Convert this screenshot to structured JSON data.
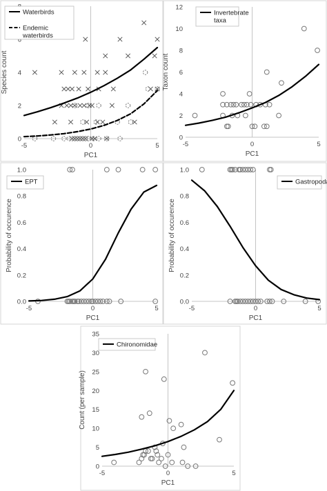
{
  "chart_data": [
    {
      "type": "scatter",
      "xlabel": "PC1",
      "ylabel": "Species count",
      "xlim": [
        -5,
        5
      ],
      "ylim": [
        0,
        8
      ],
      "xticks": [
        -5,
        0,
        5
      ],
      "yticks": [
        0,
        2,
        4,
        6,
        8
      ],
      "grid": false,
      "legend": "top-left",
      "series": [
        {
          "name": "Waterbirds",
          "kind": "points",
          "marker": "x",
          "points": [
            [
              -4.2,
              4
            ],
            [
              -2.2,
              4
            ],
            [
              -1.2,
              4
            ],
            [
              -0.5,
              4
            ],
            [
              0.5,
              4
            ],
            [
              1.1,
              4
            ],
            [
              -2,
              3
            ],
            [
              -1.7,
              3
            ],
            [
              -1.4,
              3
            ],
            [
              -0.9,
              3
            ],
            [
              -0.2,
              3
            ],
            [
              0.6,
              3
            ],
            [
              1.7,
              3
            ],
            [
              -2.2,
              2
            ],
            [
              -1.8,
              2
            ],
            [
              -1.5,
              2
            ],
            [
              -1.2,
              2
            ],
            [
              -0.8,
              2
            ],
            [
              -0.5,
              2
            ],
            [
              -0.1,
              2
            ],
            [
              0.1,
              2
            ],
            [
              1.6,
              2
            ],
            [
              -0.4,
              6
            ],
            [
              2.2,
              6
            ],
            [
              4,
              7
            ],
            [
              5,
              6
            ],
            [
              1.1,
              5
            ],
            [
              2.8,
              5
            ],
            [
              4.8,
              5
            ],
            [
              -2.7,
              1
            ],
            [
              -1.5,
              1
            ],
            [
              -0.3,
              1
            ],
            [
              0.5,
              1
            ],
            [
              0.9,
              1
            ],
            [
              3.3,
              1
            ],
            [
              4.5,
              3
            ],
            [
              5,
              3
            ],
            [
              -1.4,
              0
            ],
            [
              -1.2,
              0
            ],
            [
              -1,
              0
            ],
            [
              -0.8,
              0
            ],
            [
              -0.6,
              0
            ],
            [
              -0.4,
              0
            ],
            [
              0.1,
              0
            ],
            [
              0.3,
              0
            ],
            [
              1.2,
              0
            ]
          ]
        },
        {
          "name": "Endemic waterbirds",
          "kind": "points",
          "marker": "dashed-circle",
          "points": [
            [
              -4.2,
              0
            ],
            [
              -2.8,
              0
            ],
            [
              -2,
              0
            ],
            [
              -1.6,
              0
            ],
            [
              -1.4,
              0
            ],
            [
              -1.2,
              0
            ],
            [
              -1,
              0
            ],
            [
              -0.8,
              0
            ],
            [
              -0.6,
              0
            ],
            [
              -0.4,
              0
            ],
            [
              -0.2,
              0
            ],
            [
              0.2,
              0
            ],
            [
              0.6,
              0
            ],
            [
              1.2,
              0
            ],
            [
              2.2,
              0
            ],
            [
              -0.6,
              1
            ],
            [
              0.4,
              1
            ],
            [
              2,
              1
            ],
            [
              3,
              1
            ],
            [
              -1.2,
              2
            ],
            [
              -0.2,
              2
            ],
            [
              0.6,
              2
            ],
            [
              2.8,
              2
            ],
            [
              4.3,
              3
            ],
            [
              5,
              3
            ],
            [
              4.1,
              4
            ]
          ]
        },
        {
          "name": "Waterbirds",
          "kind": "line",
          "style": "solid",
          "x": [
            -5,
            -4,
            -3,
            -2,
            -1,
            0,
            1,
            2,
            3,
            4,
            5
          ],
          "y": [
            1.4,
            1.62,
            1.87,
            2.15,
            2.45,
            2.8,
            3.2,
            3.65,
            4.15,
            4.8,
            5.5
          ]
        },
        {
          "name": "Endemic waterbirds",
          "kind": "line",
          "style": "dashed",
          "x": [
            -5,
            -4,
            -3,
            -2,
            -1,
            0,
            1,
            2,
            3,
            4,
            5
          ],
          "y": [
            0.12,
            0.16,
            0.22,
            0.3,
            0.42,
            0.58,
            0.8,
            1.1,
            1.5,
            2.1,
            2.9
          ]
        }
      ]
    },
    {
      "type": "scatter",
      "xlabel": "PC1",
      "ylabel": "Taxon count",
      "xlim": [
        -5,
        5
      ],
      "ylim": [
        0,
        12
      ],
      "xticks": [
        -5,
        0,
        5
      ],
      "yticks": [
        0,
        2,
        4,
        6,
        8,
        10,
        12
      ],
      "grid": false,
      "legend": "top-left",
      "series": [
        {
          "name": "Invertebrate taxa",
          "kind": "points",
          "marker": "circle",
          "points": [
            [
              -4.3,
              2
            ],
            [
              -2.2,
              4
            ],
            [
              -2.2,
              2
            ],
            [
              -2.2,
              3
            ],
            [
              -1.9,
              3
            ],
            [
              -1.6,
              3
            ],
            [
              -1.5,
              2
            ],
            [
              -1.4,
              3
            ],
            [
              -1.8,
              1
            ],
            [
              -1.9,
              1
            ],
            [
              -1.1,
              2
            ],
            [
              -1.2,
              3
            ],
            [
              -0.8,
              3
            ],
            [
              -0.6,
              3
            ],
            [
              -0.5,
              2
            ],
            [
              -0.4,
              3
            ],
            [
              -0.2,
              4
            ],
            [
              -0.1,
              3
            ],
            [
              0,
              1
            ],
            [
              0.2,
              1
            ],
            [
              0.3,
              3
            ],
            [
              0.6,
              3
            ],
            [
              0.9,
              1
            ],
            [
              1,
              3
            ],
            [
              1.1,
              6
            ],
            [
              1.1,
              1
            ],
            [
              1.3,
              3
            ],
            [
              2.2,
              5
            ],
            [
              2,
              2
            ],
            [
              3.9,
              10
            ],
            [
              4.9,
              8
            ]
          ]
        },
        {
          "name": "Invertebrate taxa",
          "kind": "line",
          "style": "solid",
          "x": [
            -5,
            -4,
            -3,
            -2,
            -1,
            0,
            1,
            2,
            3,
            4,
            5
          ],
          "y": [
            1.1,
            1.3,
            1.55,
            1.85,
            2.25,
            2.7,
            3.2,
            3.85,
            4.65,
            5.6,
            6.7
          ]
        }
      ]
    },
    {
      "type": "scatter",
      "xlabel": "PC1",
      "ylabel": "Probability of occurence",
      "xlim": [
        -5,
        5
      ],
      "ylim": [
        0,
        1
      ],
      "xticks": [
        -5,
        0,
        5
      ],
      "yticks": [
        0.0,
        0.2,
        0.4,
        0.6,
        0.8,
        1.0
      ],
      "ytick_labels": [
        "0.0",
        "0.2",
        "0.4",
        "0.6",
        "0.8",
        "1.0"
      ],
      "grid": false,
      "legend": "top-left",
      "series": [
        {
          "name": "EPT",
          "kind": "points",
          "marker": "circle",
          "points": [
            [
              -4.3,
              0
            ],
            [
              -2,
              0
            ],
            [
              -1.9,
              0
            ],
            [
              -1.8,
              0
            ],
            [
              -1.6,
              0
            ],
            [
              -1.5,
              0
            ],
            [
              -1.4,
              0
            ],
            [
              -1.2,
              0
            ],
            [
              -1.1,
              0
            ],
            [
              -0.9,
              0
            ],
            [
              -0.7,
              0
            ],
            [
              -0.5,
              0
            ],
            [
              -0.3,
              0
            ],
            [
              -0.1,
              0
            ],
            [
              0,
              0
            ],
            [
              0.2,
              0
            ],
            [
              0.4,
              0
            ],
            [
              0.6,
              0
            ],
            [
              0.8,
              0
            ],
            [
              1.1,
              0
            ],
            [
              1.3,
              0
            ],
            [
              2.2,
              0
            ],
            [
              4.9,
              0
            ],
            [
              -1.8,
              1
            ],
            [
              -1.6,
              1
            ],
            [
              1.1,
              1
            ],
            [
              2,
              1
            ],
            [
              3.9,
              1
            ],
            [
              4.9,
              1
            ]
          ]
        },
        {
          "name": "EPT",
          "kind": "line",
          "style": "solid",
          "x": [
            -5,
            -4,
            -3,
            -2,
            -1,
            0,
            1,
            2,
            3,
            4,
            5
          ],
          "y": [
            0.003,
            0.007,
            0.016,
            0.036,
            0.08,
            0.17,
            0.32,
            0.52,
            0.7,
            0.83,
            0.88
          ]
        }
      ]
    },
    {
      "type": "scatter",
      "xlabel": "PC1",
      "ylabel": "Probability of occurence",
      "xlim": [
        -5,
        5
      ],
      "ylim": [
        0,
        1
      ],
      "xticks": [
        -5,
        0,
        5
      ],
      "yticks": [
        0.0,
        0.2,
        0.4,
        0.6,
        0.8,
        1.0
      ],
      "ytick_labels": [
        "0.0",
        "0.2",
        "0.4",
        "0.6",
        "0.8",
        "1.0"
      ],
      "grid": false,
      "legend": "top-right",
      "series": [
        {
          "name": "Gastropoda",
          "kind": "points",
          "marker": "circle",
          "points": [
            [
              -4.2,
              1
            ],
            [
              -2,
              1
            ],
            [
              -1.9,
              1
            ],
            [
              -1.8,
              1
            ],
            [
              -1.6,
              1
            ],
            [
              -1.3,
              1
            ],
            [
              -1.2,
              1
            ],
            [
              -1,
              1
            ],
            [
              -0.8,
              1
            ],
            [
              -0.6,
              1
            ],
            [
              -0.4,
              1
            ],
            [
              -0.2,
              1
            ],
            [
              1.1,
              1
            ],
            [
              1.2,
              1
            ],
            [
              -2,
              0
            ],
            [
              -1.6,
              0
            ],
            [
              -1.5,
              0
            ],
            [
              -1.4,
              0
            ],
            [
              -1.2,
              0
            ],
            [
              -1,
              0
            ],
            [
              -0.8,
              0
            ],
            [
              -0.6,
              0
            ],
            [
              -0.4,
              0
            ],
            [
              -0.2,
              0
            ],
            [
              0,
              0
            ],
            [
              0.2,
              0
            ],
            [
              0.4,
              0
            ],
            [
              0.9,
              0
            ],
            [
              1.1,
              0
            ],
            [
              1.3,
              0
            ],
            [
              2.2,
              0
            ],
            [
              3.9,
              0
            ],
            [
              4.9,
              0
            ]
          ]
        },
        {
          "name": "Gastropoda",
          "kind": "line",
          "style": "solid",
          "x": [
            -5,
            -4,
            -3,
            -2,
            -1,
            0,
            1,
            2,
            3,
            4,
            5
          ],
          "y": [
            0.92,
            0.84,
            0.72,
            0.57,
            0.41,
            0.27,
            0.16,
            0.09,
            0.05,
            0.025,
            0.013
          ]
        }
      ]
    },
    {
      "type": "scatter",
      "xlabel": "PC1",
      "ylabel": "Count (per sample)",
      "xlim": [
        -5,
        5
      ],
      "ylim": [
        0,
        35
      ],
      "xticks": [
        -5,
        0,
        5
      ],
      "yticks": [
        0,
        5,
        10,
        15,
        20,
        25,
        30,
        35
      ],
      "grid": false,
      "legend": "top-left",
      "series": [
        {
          "name": "Chironomidae",
          "kind": "points",
          "marker": "circle",
          "points": [
            [
              -4.1,
              1
            ],
            [
              -2,
              13
            ],
            [
              -1.7,
              25
            ],
            [
              -1.4,
              14
            ],
            [
              -2.2,
              1
            ],
            [
              -2,
              2
            ],
            [
              -1.9,
              3
            ],
            [
              -1.8,
              3
            ],
            [
              -1.7,
              4
            ],
            [
              -1.5,
              4
            ],
            [
              -1.3,
              2
            ],
            [
              -1.2,
              2
            ],
            [
              -1,
              5
            ],
            [
              -0.9,
              4
            ],
            [
              -0.8,
              3
            ],
            [
              -0.7,
              1
            ],
            [
              -0.5,
              2
            ],
            [
              -0.4,
              6
            ],
            [
              -0.3,
              23
            ],
            [
              -0.2,
              0
            ],
            [
              0,
              3
            ],
            [
              0.1,
              12
            ],
            [
              0.3,
              1
            ],
            [
              0.4,
              10
            ],
            [
              1,
              11
            ],
            [
              1.2,
              5
            ],
            [
              1.1,
              1
            ],
            [
              1.5,
              0
            ],
            [
              2.1,
              0
            ],
            [
              2.8,
              30
            ],
            [
              3.9,
              7
            ],
            [
              4.9,
              22
            ]
          ]
        },
        {
          "name": "Chironomidae",
          "kind": "line",
          "style": "solid",
          "x": [
            -5,
            -4,
            -3,
            -2,
            -1,
            0,
            1,
            2,
            3,
            4,
            5
          ],
          "y": [
            2.6,
            3.1,
            3.7,
            4.5,
            5.4,
            6.5,
            7.9,
            9.6,
            11.8,
            15,
            20
          ]
        }
      ]
    }
  ]
}
